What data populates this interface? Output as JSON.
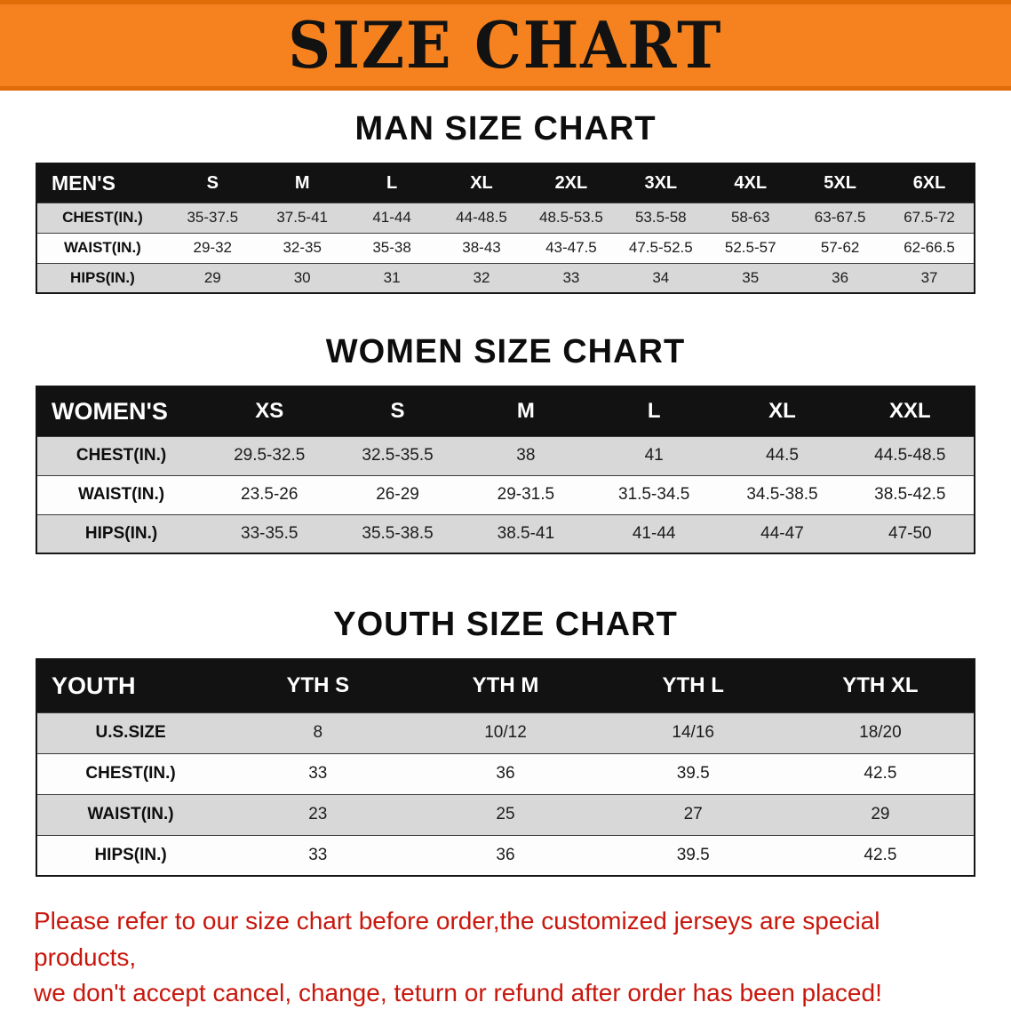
{
  "banner": {
    "title": "SIZE CHART"
  },
  "colors": {
    "banner_bg": "#f5821f",
    "header_bar": "#121212",
    "shaded_row": "#d8d8d8",
    "footer_text": "#c8170d"
  },
  "sections": [
    {
      "id": "men",
      "heading": "MAN SIZE CHART",
      "table": {
        "header": [
          "MEN'S",
          "S",
          "M",
          "L",
          "XL",
          "2XL",
          "3XL",
          "4XL",
          "5XL",
          "6XL"
        ],
        "rows": [
          {
            "label": "CHEST(IN.)",
            "values": [
              "35-37.5",
              "37.5-41",
              "41-44",
              "44-48.5",
              "48.5-53.5",
              "53.5-58",
              "58-63",
              "63-67.5",
              "67.5-72"
            ]
          },
          {
            "label": "WAIST(IN.)",
            "values": [
              "29-32",
              "32-35",
              "35-38",
              "38-43",
              "43-47.5",
              "47.5-52.5",
              "52.5-57",
              "57-62",
              "62-66.5"
            ]
          },
          {
            "label": "HIPS(IN.)",
            "values": [
              "29",
              "30",
              "31",
              "32",
              "33",
              "34",
              "35",
              "36",
              "37"
            ]
          }
        ]
      }
    },
    {
      "id": "women",
      "heading": "WOMEN SIZE CHART",
      "table": {
        "header": [
          "WOMEN'S",
          "XS",
          "S",
          "M",
          "L",
          "XL",
          "XXL"
        ],
        "rows": [
          {
            "label": "CHEST(IN.)",
            "values": [
              "29.5-32.5",
              "32.5-35.5",
              "38",
              "41",
              "44.5",
              "44.5-48.5"
            ]
          },
          {
            "label": "WAIST(IN.)",
            "values": [
              "23.5-26",
              "26-29",
              "29-31.5",
              "31.5-34.5",
              "34.5-38.5",
              "38.5-42.5"
            ]
          },
          {
            "label": "HIPS(IN.)",
            "values": [
              "33-35.5",
              "35.5-38.5",
              "38.5-41",
              "41-44",
              "44-47",
              "47-50"
            ]
          }
        ]
      }
    },
    {
      "id": "youth",
      "heading": "YOUTH SIZE CHART",
      "table": {
        "header": [
          "YOUTH",
          "YTH S",
          "YTH M",
          "YTH L",
          "YTH XL"
        ],
        "rows": [
          {
            "label": "U.S.SIZE",
            "values": [
              "8",
              "10/12",
              "14/16",
              "18/20"
            ]
          },
          {
            "label": "CHEST(IN.)",
            "values": [
              "33",
              "36",
              "39.5",
              "42.5"
            ]
          },
          {
            "label": "WAIST(IN.)",
            "values": [
              "23",
              "25",
              "27",
              "29"
            ]
          },
          {
            "label": "HIPS(IN.)",
            "values": [
              "33",
              "36",
              "39.5",
              "42.5"
            ]
          }
        ]
      }
    }
  ],
  "footer": {
    "line1": "Please refer to our size chart before order,the customized jerseys are special products,",
    "line2": "we don't accept cancel, change, teturn or refund after order has been placed!"
  }
}
